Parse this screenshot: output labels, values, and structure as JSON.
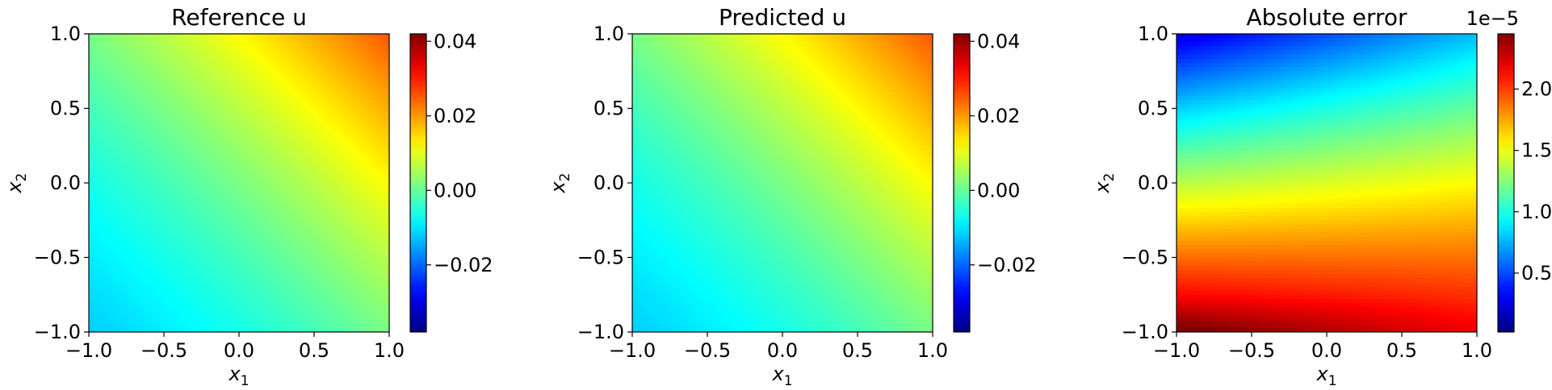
{
  "chart_data": [
    {
      "type": "heatmap",
      "title": "Reference u",
      "xlabel": "x1",
      "ylabel": "x2",
      "xlim": [
        -1.0,
        1.0
      ],
      "ylim": [
        -1.0,
        1.0
      ],
      "xticks": [
        "−1.0",
        "−0.5",
        "0.0",
        "0.5",
        "1.0"
      ],
      "yticks": [
        "−1.0",
        "−0.5",
        "0.0",
        "0.5",
        "1.0"
      ],
      "colormap": "jet",
      "colorbar": {
        "range": [
          -0.038,
          0.042
        ],
        "ticks": [
          -0.02,
          0.0,
          0.02,
          0.04
        ],
        "tick_labels": [
          "−0.02",
          "0.00",
          "0.02",
          "0.04"
        ],
        "offset_text": ""
      },
      "field": "u(x1,x2) increases along the diagonal x1 + x2; minimum at (-1,-1), maximum at (1,1)",
      "grid": false
    },
    {
      "type": "heatmap",
      "title": "Predicted u",
      "xlabel": "x1",
      "ylabel": "x2",
      "xlim": [
        -1.0,
        1.0
      ],
      "ylim": [
        -1.0,
        1.0
      ],
      "xticks": [
        "−1.0",
        "−0.5",
        "0.0",
        "0.5",
        "1.0"
      ],
      "yticks": [
        "−1.0",
        "−0.5",
        "0.0",
        "0.5",
        "1.0"
      ],
      "colormap": "jet",
      "colorbar": {
        "range": [
          -0.038,
          0.042
        ],
        "ticks": [
          -0.02,
          0.0,
          0.02,
          0.04
        ],
        "tick_labels": [
          "−0.02",
          "0.00",
          "0.02",
          "0.04"
        ],
        "offset_text": ""
      },
      "field": "visually identical to Reference u",
      "grid": false
    },
    {
      "type": "heatmap",
      "title": "Absolute error",
      "xlabel": "x1",
      "ylabel": "x2",
      "xlim": [
        -1.0,
        1.0
      ],
      "ylim": [
        -1.0,
        1.0
      ],
      "xticks": [
        "−1.0",
        "−0.5",
        "0.0",
        "0.5",
        "1.0"
      ],
      "yticks": [
        "−1.0",
        "−0.5",
        "0.0",
        "0.5",
        "1.0"
      ],
      "colormap": "jet",
      "colorbar": {
        "range": [
          2e-07,
          2.45e-05
        ],
        "ticks": [
          0.5,
          1.0,
          1.5,
          2.0
        ],
        "tick_labels": [
          "0.5",
          "1.0",
          "1.5",
          "2.0"
        ],
        "offset_text": "1e−5"
      },
      "field": "error largest near bottom edge (x2 = -1, peak at x1 = -1), smallest near top-left (x1 = -1, x2 = 1)",
      "grid": false
    }
  ]
}
